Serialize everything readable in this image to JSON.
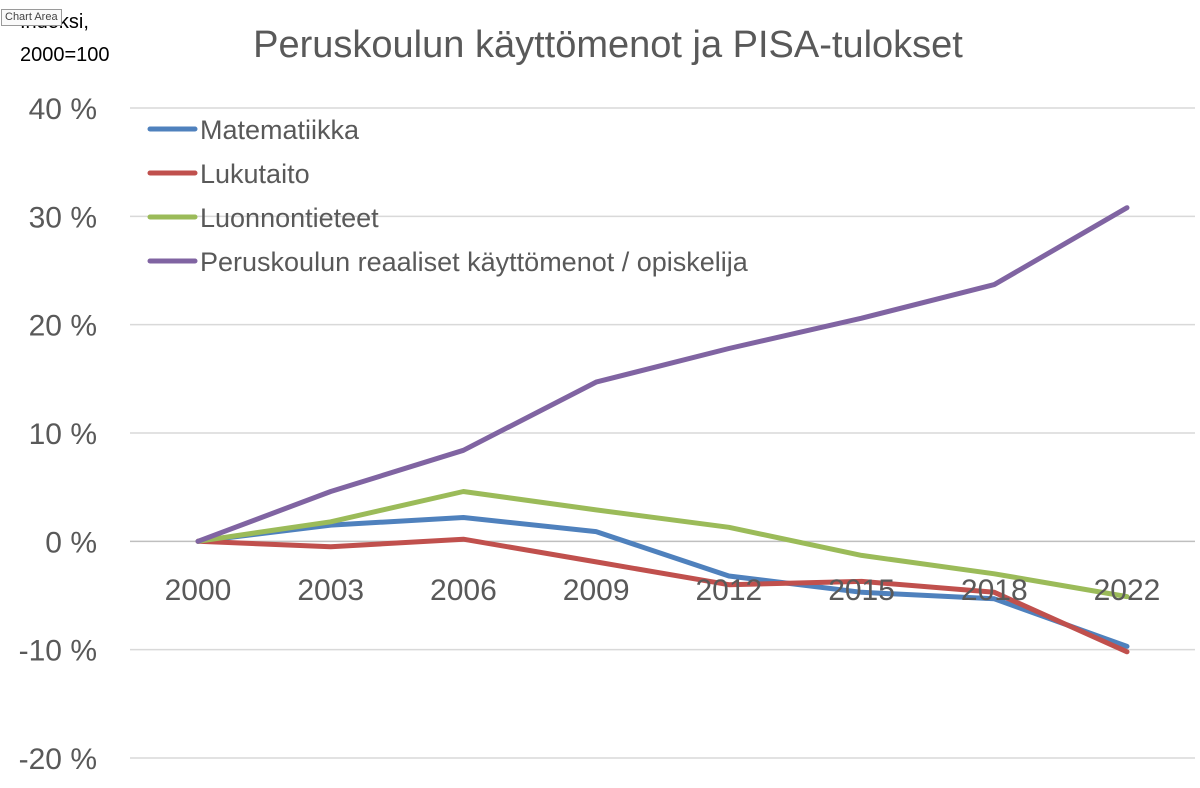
{
  "tooltip": "Chart Area",
  "chart_data": {
    "type": "line",
    "title": "Peruskoulun käyttömenot ja PISA-tulokset",
    "ylabel_lines": [
      "Indeksi,",
      "2000=100"
    ],
    "xlabel": "",
    "categories": [
      "2000",
      "2003",
      "2006",
      "2009",
      "2012",
      "2015",
      "2018",
      "2022"
    ],
    "ylim": [
      -20,
      40
    ],
    "yticks": [
      40,
      30,
      20,
      10,
      0,
      -10,
      -20
    ],
    "ytick_labels": [
      "40 %",
      "30 %",
      "20 %",
      "10 %",
      "0 %",
      "-10 %",
      "-20 %"
    ],
    "grid": true,
    "legend_position": "top-left",
    "series": [
      {
        "name": "Matematiikka",
        "color": "#4f81bd",
        "values": [
          0,
          1.5,
          2.2,
          0.9,
          -3.2,
          -4.7,
          -5.3,
          -9.7
        ]
      },
      {
        "name": "Lukutaito",
        "color": "#c0504d",
        "values": [
          0,
          -0.5,
          0.2,
          -1.9,
          -4.0,
          -3.7,
          -4.7,
          -10.2
        ]
      },
      {
        "name": "Luonnontieteet",
        "color": "#9bbb59",
        "values": [
          0,
          1.8,
          4.6,
          2.9,
          1.3,
          -1.3,
          -3.0,
          -5.1
        ]
      },
      {
        "name": "Peruskoulun reaaliset käyttömenot / opiskelija",
        "color": "#8064a2",
        "values": [
          0,
          4.6,
          8.4,
          14.7,
          17.8,
          20.6,
          23.7,
          30.8
        ]
      }
    ]
  }
}
